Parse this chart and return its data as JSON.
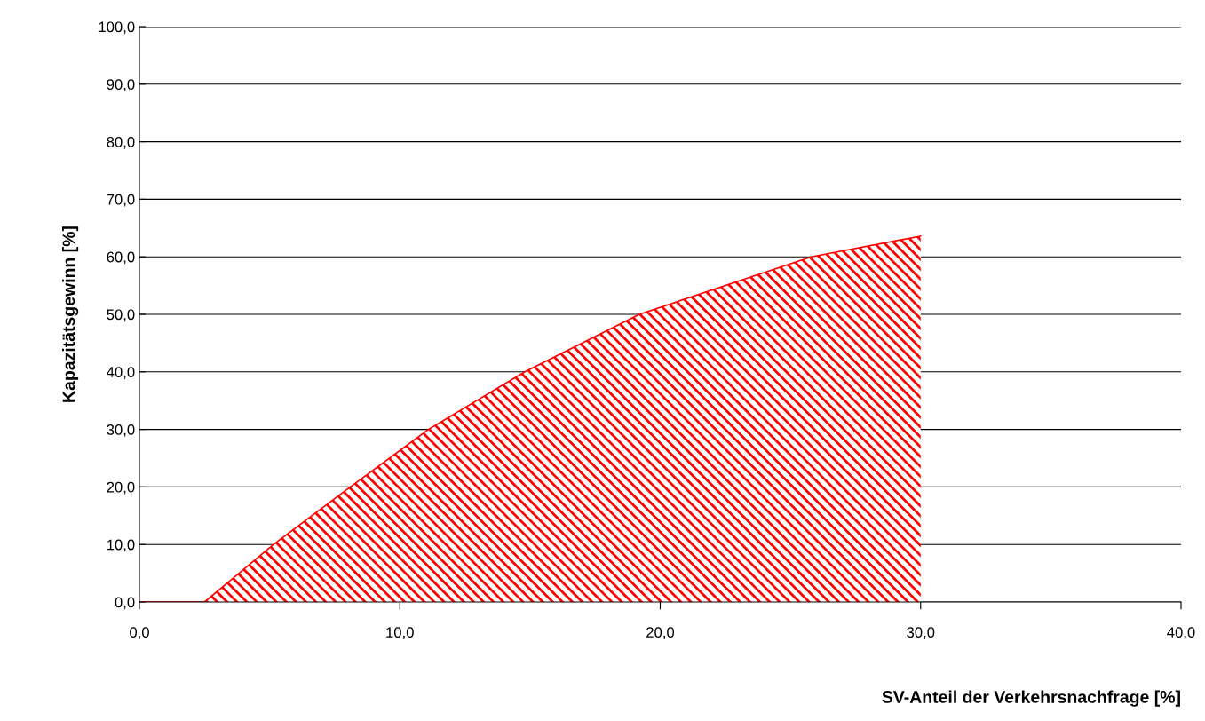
{
  "chart_data": {
    "type": "area",
    "xlabel": "SV-Anteil der Verkehrsnachfrage [%]",
    "ylabel": "Kapazitätsgewinn [%]",
    "x": [
      0,
      2.5,
      5.15,
      8.1,
      11.1,
      14.8,
      19.2,
      25.8,
      30
    ],
    "series": [
      {
        "color": "#ff0000",
        "values": [
          0,
          0,
          10,
          20,
          30,
          40,
          50,
          60,
          63.6
        ]
      }
    ],
    "xlim": [
      0,
      40
    ],
    "xticks": [
      {
        "value": 0,
        "label": "0,0"
      },
      {
        "value": 10,
        "label": "10,0"
      },
      {
        "value": 20,
        "label": "20,0"
      },
      {
        "value": 30,
        "label": "30,0"
      },
      {
        "value": 40,
        "label": "40,0"
      }
    ],
    "ylim": [
      0,
      100
    ],
    "yticks": [
      {
        "value": 0,
        "label": "0,0"
      },
      {
        "value": 10,
        "label": "10,0"
      },
      {
        "value": 20,
        "label": "20,0"
      },
      {
        "value": 30,
        "label": "30,0"
      },
      {
        "value": 40,
        "label": "40,0"
      },
      {
        "value": 50,
        "label": "50,0"
      },
      {
        "value": 60,
        "label": "60,0"
      },
      {
        "value": 70,
        "label": "70,0"
      },
      {
        "value": 80,
        "label": "80,0"
      },
      {
        "value": 90,
        "label": "90,0"
      },
      {
        "value": 100,
        "label": "100,0"
      }
    ],
    "grid": "y"
  }
}
